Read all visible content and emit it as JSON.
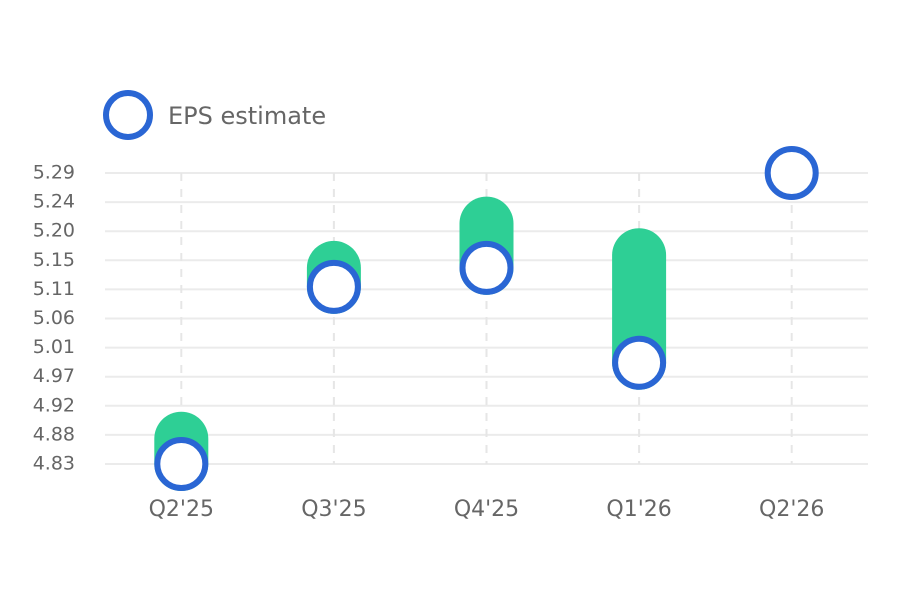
{
  "chart_data": {
    "type": "eps-range",
    "categories": [
      "Q2'25",
      "Q3'25",
      "Q4'25",
      "Q1'26",
      "Q2'26"
    ],
    "series": [
      {
        "name": "EPS estimate",
        "color": "#2a66d4",
        "values": [
          4.83,
          5.11,
          5.14,
          4.99,
          5.29
        ]
      },
      {
        "color": "#2ecf95",
        "values": [
          4.87,
          5.14,
          5.21,
          5.16,
          null
        ]
      }
    ],
    "ylim": [
      4.83,
      5.29
    ],
    "yticks": [
      4.83,
      {
        "value": 4.876,
        "label": "4.88"
      },
      {
        "value": 4.922,
        "label": "4.92"
      },
      {
        "value": 4.968,
        "label": "4.97"
      },
      {
        "value": 5.014,
        "label": "5.01"
      },
      5.06,
      {
        "value": 5.106,
        "label": "5.11"
      },
      {
        "value": 5.152,
        "label": "5.15"
      },
      {
        "value": 5.198,
        "label": "5.20"
      },
      {
        "value": 5.244,
        "label": "5.24"
      },
      5.29
    ],
    "grid": true
  }
}
